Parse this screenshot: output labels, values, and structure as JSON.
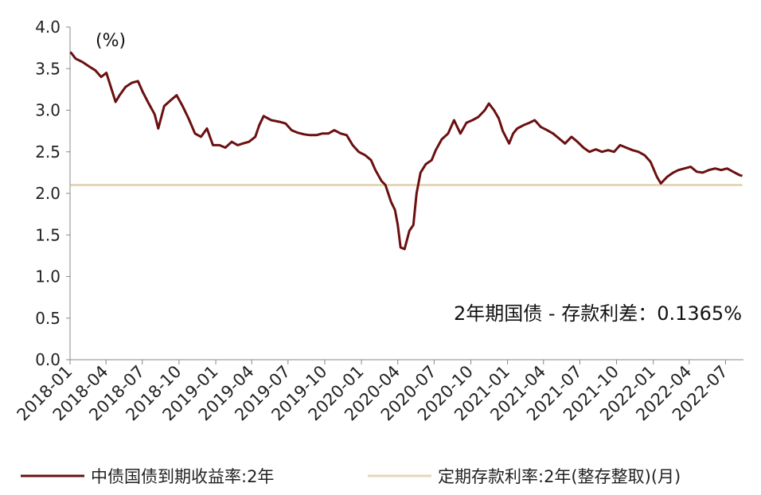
{
  "chart_data": {
    "type": "line",
    "unit_label": "(%)",
    "annotation": "2年期国债 - 存款利差：0.1365%",
    "ylim": [
      0.0,
      4.0
    ],
    "y_ticks": [
      "0.0",
      "0.5",
      "1.0",
      "1.5",
      "2.0",
      "2.5",
      "3.0",
      "3.5",
      "4.0"
    ],
    "x_ticks": [
      "2018-01",
      "2018-04",
      "2018-07",
      "2018-10",
      "2019-01",
      "2019-04",
      "2019-07",
      "2019-10",
      "2020-01",
      "2020-04",
      "2020-07",
      "2020-10",
      "2021-01",
      "2021-04",
      "2021-07",
      "2021-10",
      "2022-01",
      "2022-04",
      "2022-07"
    ],
    "grid": false,
    "legend_position": "bottom",
    "series": [
      {
        "name": "中债国债到期收益率:2年",
        "color": "#6b0f10",
        "points": [
          [
            "2018-01-02",
            3.7
          ],
          [
            "2018-01-15",
            3.62
          ],
          [
            "2018-02-01",
            3.58
          ],
          [
            "2018-02-20",
            3.52
          ],
          [
            "2018-03-05",
            3.48
          ],
          [
            "2018-03-20",
            3.4
          ],
          [
            "2018-04-02",
            3.45
          ],
          [
            "2018-04-12",
            3.3
          ],
          [
            "2018-04-25",
            3.1
          ],
          [
            "2018-05-05",
            3.18
          ],
          [
            "2018-05-20",
            3.28
          ],
          [
            "2018-06-05",
            3.33
          ],
          [
            "2018-06-20",
            3.35
          ],
          [
            "2018-07-02",
            3.22
          ],
          [
            "2018-07-15",
            3.1
          ],
          [
            "2018-08-01",
            2.95
          ],
          [
            "2018-08-10",
            2.78
          ],
          [
            "2018-08-25",
            3.05
          ],
          [
            "2018-09-10",
            3.12
          ],
          [
            "2018-09-25",
            3.18
          ],
          [
            "2018-10-10",
            3.05
          ],
          [
            "2018-10-25",
            2.9
          ],
          [
            "2018-11-10",
            2.72
          ],
          [
            "2018-11-25",
            2.68
          ],
          [
            "2018-12-10",
            2.78
          ],
          [
            "2018-12-25",
            2.58
          ],
          [
            "2019-01-10",
            2.58
          ],
          [
            "2019-01-25",
            2.55
          ],
          [
            "2019-02-10",
            2.62
          ],
          [
            "2019-02-25",
            2.58
          ],
          [
            "2019-03-10",
            2.6
          ],
          [
            "2019-03-25",
            2.62
          ],
          [
            "2019-04-10",
            2.68
          ],
          [
            "2019-04-20",
            2.82
          ],
          [
            "2019-05-01",
            2.93
          ],
          [
            "2019-05-20",
            2.88
          ],
          [
            "2019-06-10",
            2.86
          ],
          [
            "2019-06-25",
            2.84
          ],
          [
            "2019-07-10",
            2.76
          ],
          [
            "2019-07-25",
            2.73
          ],
          [
            "2019-08-10",
            2.71
          ],
          [
            "2019-08-25",
            2.7
          ],
          [
            "2019-09-10",
            2.7
          ],
          [
            "2019-09-25",
            2.72
          ],
          [
            "2019-10-10",
            2.72
          ],
          [
            "2019-10-25",
            2.76
          ],
          [
            "2019-11-10",
            2.72
          ],
          [
            "2019-11-25",
            2.7
          ],
          [
            "2019-12-10",
            2.58
          ],
          [
            "2019-12-25",
            2.5
          ],
          [
            "2020-01-10",
            2.46
          ],
          [
            "2020-01-25",
            2.4
          ],
          [
            "2020-02-05",
            2.28
          ],
          [
            "2020-02-20",
            2.15
          ],
          [
            "2020-03-01",
            2.1
          ],
          [
            "2020-03-15",
            1.9
          ],
          [
            "2020-03-25",
            1.8
          ],
          [
            "2020-04-01",
            1.62
          ],
          [
            "2020-04-08",
            1.35
          ],
          [
            "2020-04-18",
            1.33
          ],
          [
            "2020-04-30",
            1.55
          ],
          [
            "2020-05-10",
            1.62
          ],
          [
            "2020-05-18",
            2.0
          ],
          [
            "2020-05-28",
            2.25
          ],
          [
            "2020-06-10",
            2.35
          ],
          [
            "2020-06-25",
            2.4
          ],
          [
            "2020-07-05",
            2.52
          ],
          [
            "2020-07-20",
            2.65
          ],
          [
            "2020-08-05",
            2.72
          ],
          [
            "2020-08-20",
            2.88
          ],
          [
            "2020-09-05",
            2.72
          ],
          [
            "2020-09-20",
            2.85
          ],
          [
            "2020-10-05",
            2.88
          ],
          [
            "2020-10-20",
            2.92
          ],
          [
            "2020-11-05",
            3.0
          ],
          [
            "2020-11-15",
            3.08
          ],
          [
            "2020-11-28",
            3.0
          ],
          [
            "2020-12-10",
            2.9
          ],
          [
            "2020-12-20",
            2.75
          ],
          [
            "2021-01-05",
            2.6
          ],
          [
            "2021-01-15",
            2.72
          ],
          [
            "2021-01-25",
            2.78
          ],
          [
            "2021-02-10",
            2.82
          ],
          [
            "2021-02-25",
            2.85
          ],
          [
            "2021-03-10",
            2.88
          ],
          [
            "2021-03-25",
            2.8
          ],
          [
            "2021-04-10",
            2.76
          ],
          [
            "2021-04-25",
            2.72
          ],
          [
            "2021-05-10",
            2.66
          ],
          [
            "2021-05-25",
            2.6
          ],
          [
            "2021-06-10",
            2.68
          ],
          [
            "2021-06-25",
            2.62
          ],
          [
            "2021-07-10",
            2.55
          ],
          [
            "2021-07-25",
            2.5
          ],
          [
            "2021-08-10",
            2.53
          ],
          [
            "2021-08-25",
            2.5
          ],
          [
            "2021-09-10",
            2.52
          ],
          [
            "2021-09-25",
            2.5
          ],
          [
            "2021-10-10",
            2.58
          ],
          [
            "2021-10-25",
            2.55
          ],
          [
            "2021-11-10",
            2.52
          ],
          [
            "2021-11-25",
            2.5
          ],
          [
            "2021-12-10",
            2.46
          ],
          [
            "2021-12-25",
            2.38
          ],
          [
            "2022-01-10",
            2.2
          ],
          [
            "2022-01-20",
            2.12
          ],
          [
            "2022-02-05",
            2.2
          ],
          [
            "2022-02-20",
            2.25
          ],
          [
            "2022-03-05",
            2.28
          ],
          [
            "2022-03-20",
            2.3
          ],
          [
            "2022-04-05",
            2.32
          ],
          [
            "2022-04-20",
            2.26
          ],
          [
            "2022-05-05",
            2.25
          ],
          [
            "2022-05-20",
            2.28
          ],
          [
            "2022-06-05",
            2.3
          ],
          [
            "2022-06-20",
            2.28
          ],
          [
            "2022-07-05",
            2.3
          ],
          [
            "2022-07-20",
            2.26
          ],
          [
            "2022-08-05",
            2.22
          ],
          [
            "2022-08-12",
            2.21
          ]
        ]
      },
      {
        "name": "定期存款利率:2年(整存整取)(月)",
        "color": "#e6d6b8",
        "points": [
          [
            "2018-01-02",
            2.1
          ],
          [
            "2022-08-12",
            2.1
          ]
        ]
      }
    ]
  }
}
